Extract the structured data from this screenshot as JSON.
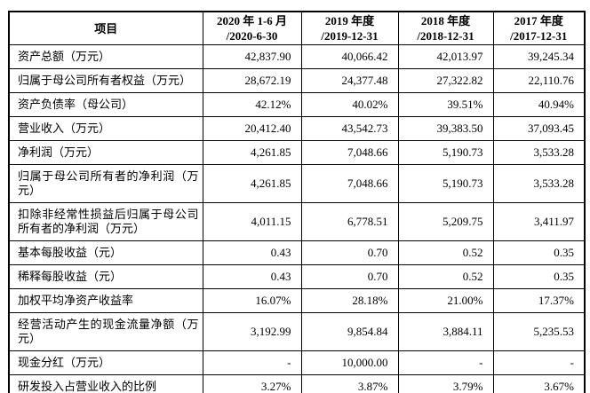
{
  "table": {
    "header": {
      "item_label": "项目",
      "periods": [
        {
          "line1": "2020 年 1-6 月",
          "line2": "/2020-6-30"
        },
        {
          "line1": "2019 年度",
          "line2": "/2019-12-31"
        },
        {
          "line1": "2018 年度",
          "line2": "/2018-12-31"
        },
        {
          "line1": "2017 年度",
          "line2": "/2017-12-31"
        }
      ]
    },
    "rows": [
      {
        "label": "资产总额（万元）",
        "values": [
          "42,837.90",
          "40,066.42",
          "42,013.97",
          "39,245.34"
        ]
      },
      {
        "label": "归属于母公司所有者权益（万元）",
        "values": [
          "28,672.19",
          "24,377.48",
          "27,322.82",
          "22,110.76"
        ]
      },
      {
        "label": "资产负债率（母公司）",
        "values": [
          "42.12%",
          "40.02%",
          "39.51%",
          "40.94%"
        ]
      },
      {
        "label": "营业收入（万元）",
        "values": [
          "20,412.40",
          "43,542.73",
          "39,383.50",
          "37,093.45"
        ]
      },
      {
        "label": "净利润（万元）",
        "values": [
          "4,261.85",
          "7,048.66",
          "5,190.73",
          "3,533.28"
        ]
      },
      {
        "label": "归属于母公司所有者的净利润（万元）",
        "values": [
          "4,261.85",
          "7,048.66",
          "5,190.73",
          "3,533.28"
        ]
      },
      {
        "label": "扣除非经常性损益后归属于母公司所有者的净利润（万元）",
        "values": [
          "4,011.15",
          "6,778.51",
          "5,209.75",
          "3,411.97"
        ]
      },
      {
        "label": "基本每股收益（元）",
        "values": [
          "0.43",
          "0.70",
          "0.52",
          "0.35"
        ]
      },
      {
        "label": "稀释每股收益（元）",
        "values": [
          "0.43",
          "0.70",
          "0.52",
          "0.35"
        ]
      },
      {
        "label": "加权平均净资产收益率",
        "values": [
          "16.07%",
          "28.18%",
          "21.00%",
          "17.37%"
        ]
      },
      {
        "label": "经营活动产生的现金流量净额（万元）",
        "values": [
          "3,192.99",
          "9,854.84",
          "3,884.11",
          "5,235.53"
        ]
      },
      {
        "label": "现金分红（万元）",
        "values": [
          "-",
          "10,000.00",
          "-",
          "-"
        ]
      },
      {
        "label": "研发投入占营业收入的比例",
        "values": [
          "3.27%",
          "3.87%",
          "3.79%",
          "3.67%"
        ]
      }
    ]
  }
}
